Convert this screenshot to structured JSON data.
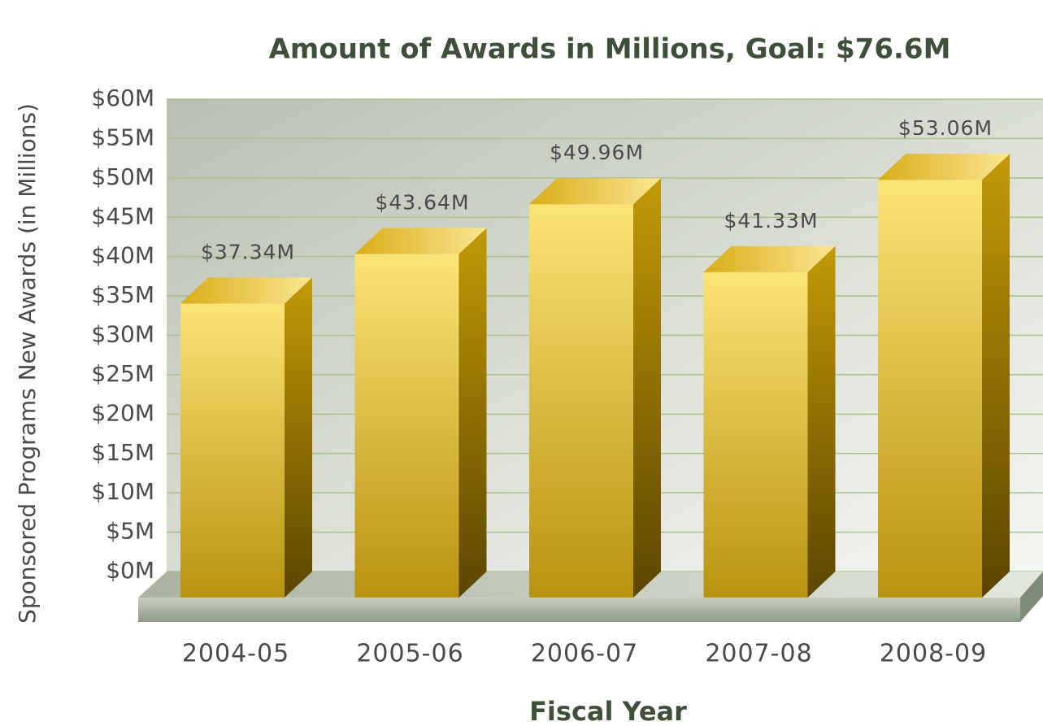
{
  "chart_data": {
    "type": "bar3d",
    "title": "Amount of Awards in Millions, Goal: $76.6M",
    "x_label": "Fiscal Year",
    "y_label": "Sponsored Programs New Awards (in Millions)",
    "categories": [
      "2004-05",
      "2005-06",
      "2006-07",
      "2007-08",
      "2008-09"
    ],
    "values": [
      37.34,
      43.64,
      49.96,
      41.33,
      53.06
    ],
    "value_labels": [
      "$37.34M",
      "$43.64M",
      "$49.96M",
      "$41.33M",
      "$53.06M"
    ],
    "color": "#e9c63c",
    "ylim": [
      0,
      60
    ],
    "yticks": [
      {
        "value": 0,
        "label": "$0M"
      },
      {
        "value": 5,
        "label": "$5M"
      },
      {
        "value": 10,
        "label": "$10M"
      },
      {
        "value": 15,
        "label": "$15M"
      },
      {
        "value": 20,
        "label": "$20M"
      },
      {
        "value": 25,
        "label": "$25M"
      },
      {
        "value": 30,
        "label": "$30M"
      },
      {
        "value": 35,
        "label": "$35M"
      },
      {
        "value": 40,
        "label": "$40M"
      },
      {
        "value": 45,
        "label": "$45M"
      },
      {
        "value": 50,
        "label": "$50M"
      },
      {
        "value": 55,
        "label": "$55M"
      },
      {
        "value": 60,
        "label": "$60M"
      }
    ],
    "grid": true
  }
}
